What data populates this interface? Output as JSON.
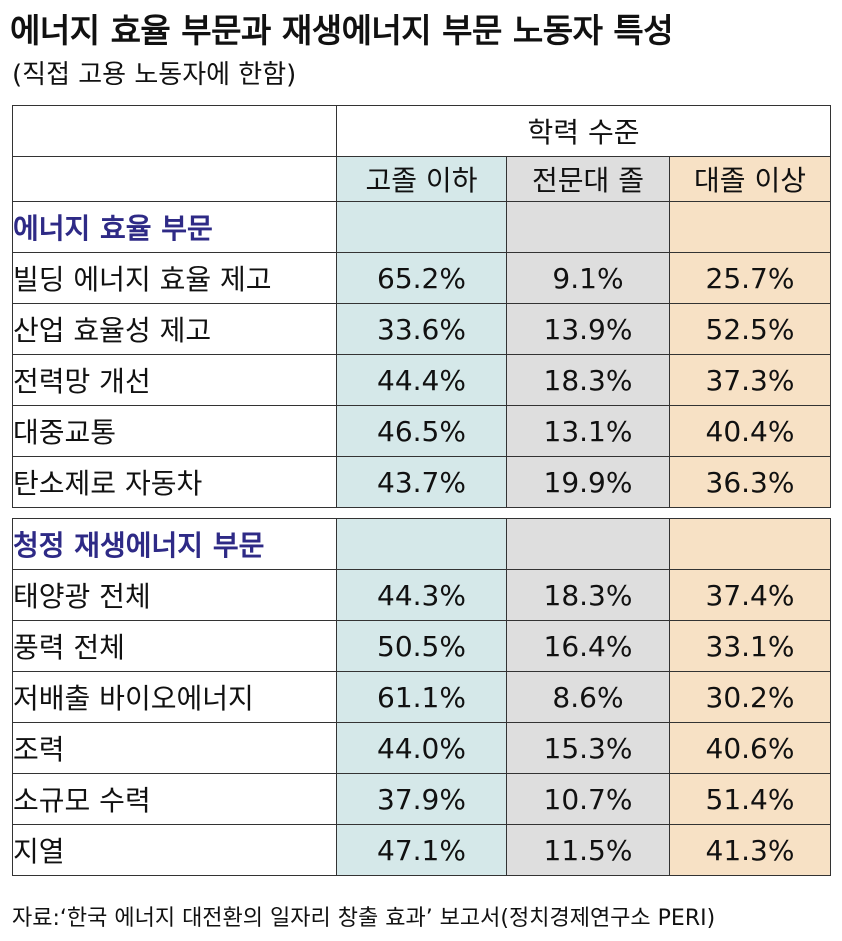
{
  "title": "에너지 효율 부문과 재생에너지 부문 노동자 특성",
  "subtitle": "(직접 고용 노동자에 한함)",
  "header": {
    "group": "학력 수준",
    "columns": [
      "고졸 이하",
      "전문대 졸",
      "대졸 이상"
    ]
  },
  "sections": [
    {
      "title": "에너지 효율 부문",
      "rows": [
        {
          "label": "빌딩 에너지 효율 제고",
          "values": [
            "65.2%",
            "9.1%",
            "25.7%"
          ]
        },
        {
          "label": "산업 효율성 제고",
          "values": [
            "33.6%",
            "13.9%",
            "52.5%"
          ]
        },
        {
          "label": "전력망 개선",
          "values": [
            "44.4%",
            "18.3%",
            "37.3%"
          ]
        },
        {
          "label": "대중교통",
          "values": [
            "46.5%",
            "13.1%",
            "40.4%"
          ]
        },
        {
          "label": "탄소제로 자동차",
          "values": [
            "43.7%",
            "19.9%",
            "36.3%"
          ]
        }
      ]
    },
    {
      "title": "청정 재생에너지 부문",
      "rows": [
        {
          "label": "태양광 전체",
          "values": [
            "44.3%",
            "18.3%",
            "37.4%"
          ]
        },
        {
          "label": "풍력 전체",
          "values": [
            "50.5%",
            "16.4%",
            "33.1%"
          ]
        },
        {
          "label": "저배출 바이오에너지",
          "values": [
            "61.1%",
            "8.6%",
            "30.2%"
          ]
        },
        {
          "label": "조력",
          "values": [
            "44.0%",
            "15.3%",
            "40.6%"
          ]
        },
        {
          "label": "소규모 수력",
          "values": [
            "37.9%",
            "10.7%",
            "51.4%"
          ]
        },
        {
          "label": "지열",
          "values": [
            "47.1%",
            "11.5%",
            "41.3%"
          ]
        }
      ]
    }
  ],
  "source": "자료:‘한국 에너지 대전환의 일자리 창출 효과’ 보고서(정치경제연구소 PERI)",
  "colors": {
    "section_title": "#2e2a86",
    "col1_bg": "#d5e8e9",
    "col2_bg": "#dedede",
    "col3_bg": "#f7e1c5"
  }
}
